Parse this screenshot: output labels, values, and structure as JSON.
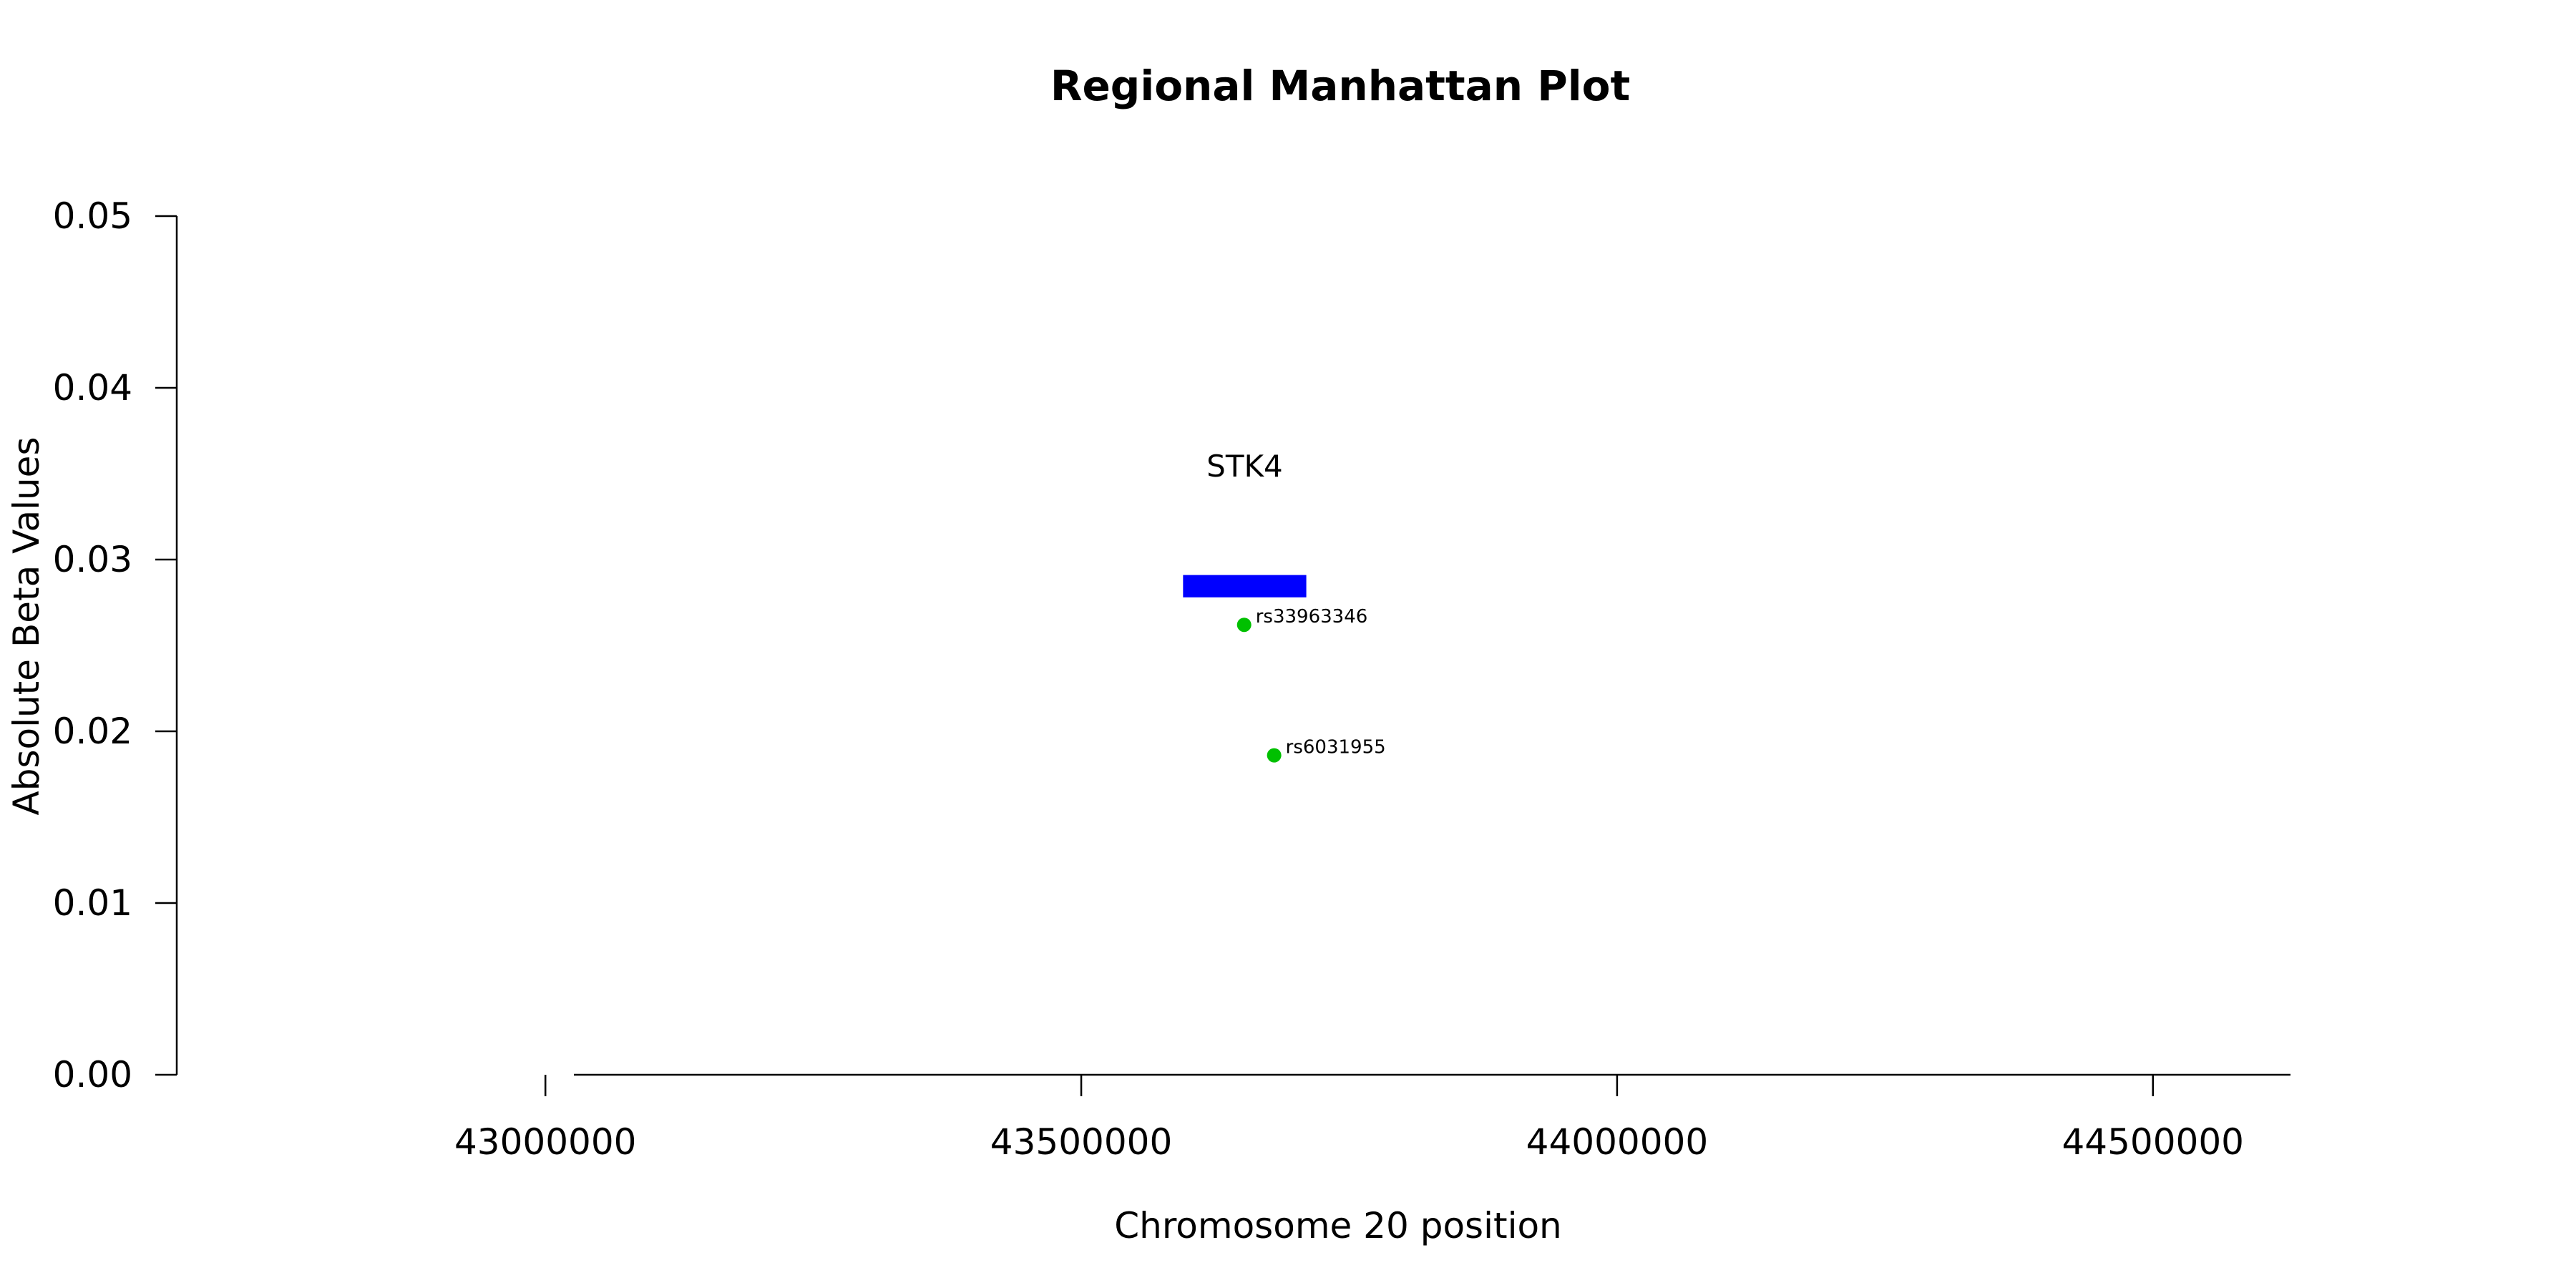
{
  "chart_data": {
    "type": "scatter",
    "title": "Regional Manhattan Plot",
    "xlabel": "Chromosome 20 position",
    "ylabel": "Absolute Beta Values",
    "xlim": [
      42656000,
      44828000
    ],
    "ylim": [
      0,
      0.05
    ],
    "x_ticks": [
      43000000,
      43500000,
      44000000,
      44500000
    ],
    "x_tick_labels": [
      "43000000",
      "43500000",
      "44000000",
      "44500000"
    ],
    "y_ticks": [
      0,
      0.01,
      0.02,
      0.03,
      0.04,
      0.05
    ],
    "y_tick_labels": [
      "0.00",
      "0.01",
      "0.02",
      "0.03",
      "0.04",
      "0.05"
    ],
    "grid": false,
    "point_color": "#00c000",
    "gene_color": "#0000ff",
    "series": [
      {
        "points": [
          {
            "label": "rs33963346",
            "x": 43652000,
            "y": 0.0262
          },
          {
            "label": "rs6031955",
            "x": 43680000,
            "y": 0.0186
          }
        ]
      }
    ],
    "genes": [
      {
        "label": "STK4",
        "start": 43595000,
        "end": 43710000,
        "y_top": 0.0291,
        "y_bottom": 0.0278,
        "label_y": 0.0355
      }
    ]
  }
}
